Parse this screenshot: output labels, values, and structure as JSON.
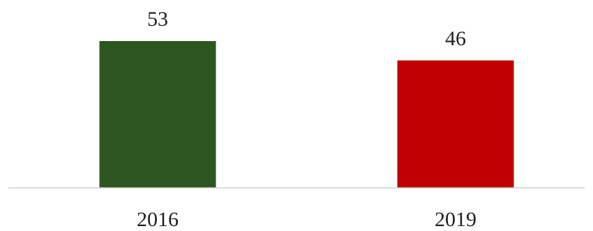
{
  "chart_data": {
    "type": "bar",
    "categories": [
      "2016",
      "2019"
    ],
    "values": [
      53,
      46
    ],
    "value_labels": [
      "53",
      "46"
    ],
    "colors": [
      "#2e5620",
      "#c00000"
    ],
    "title": "",
    "xlabel": "",
    "ylabel": "",
    "ylim": [
      0,
      53
    ],
    "grid": false,
    "legend": "none"
  }
}
